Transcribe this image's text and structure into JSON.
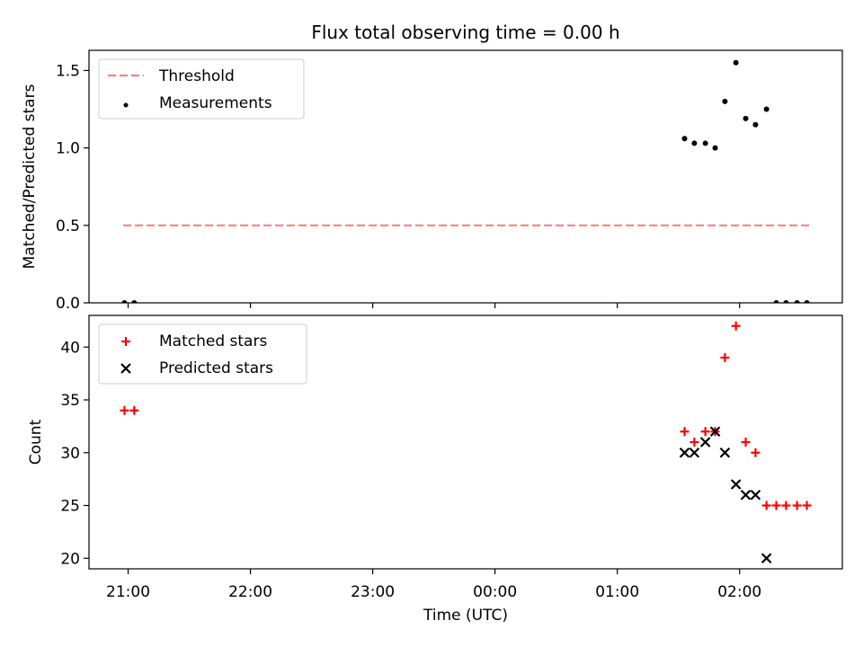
{
  "chart_data": {
    "title": "Flux total observing time = 0.00 h",
    "xlabel": "Time (UTC)",
    "x_tick_labels": [
      "21:00",
      "22:00",
      "23:00",
      "00:00",
      "01:00",
      "02:00"
    ],
    "x_unit": "hours relative to 00:00 UTC",
    "xlim": [
      -3.32,
      2.84
    ],
    "x_ticks": [
      -3,
      -2,
      -1,
      0,
      1,
      2
    ],
    "panels": [
      {
        "type": "scatter",
        "ylabel": "Matched/Predicted stars",
        "ylim": [
          0,
          1.63
        ],
        "y_ticks": [
          0.0,
          0.5,
          1.0,
          1.5
        ],
        "y_tick_labels": [
          "0.0",
          "0.5",
          "1.0",
          "1.5"
        ],
        "legend_position": "top-left",
        "series": [
          {
            "name": "Threshold",
            "kind": "line",
            "style": "dashed",
            "color": "#ff7f7f",
            "points": [
              [
                -3.04,
                0.5
              ],
              [
                2.57,
                0.5
              ]
            ]
          },
          {
            "name": "Measurements",
            "kind": "points",
            "color": "#000000",
            "points": [
              [
                -3.03,
                0.0
              ],
              [
                -2.95,
                0.0
              ],
              [
                1.55,
                1.06
              ],
              [
                1.63,
                1.03
              ],
              [
                1.72,
                1.03
              ],
              [
                1.8,
                1.0
              ],
              [
                1.88,
                1.3
              ],
              [
                1.97,
                1.55
              ],
              [
                2.05,
                1.19
              ],
              [
                2.13,
                1.15
              ],
              [
                2.22,
                1.25
              ],
              [
                2.3,
                0.0
              ],
              [
                2.38,
                0.0
              ],
              [
                2.47,
                0.0
              ],
              [
                2.55,
                0.0
              ]
            ]
          }
        ]
      },
      {
        "type": "scatter",
        "ylabel": "Count",
        "ylim": [
          19,
          43
        ],
        "y_ticks": [
          20,
          25,
          30,
          35,
          40
        ],
        "y_tick_labels": [
          "20",
          "25",
          "30",
          "35",
          "40"
        ],
        "legend_position": "top-left",
        "series": [
          {
            "name": "Matched stars",
            "kind": "plus",
            "color": "#ff0000",
            "points": [
              [
                -3.03,
                34
              ],
              [
                -2.95,
                34
              ],
              [
                1.55,
                32
              ],
              [
                1.63,
                31
              ],
              [
                1.72,
                32
              ],
              [
                1.8,
                32
              ],
              [
                1.88,
                39
              ],
              [
                1.97,
                42
              ],
              [
                2.05,
                31
              ],
              [
                2.13,
                30
              ],
              [
                2.22,
                25
              ],
              [
                2.3,
                25
              ],
              [
                2.38,
                25
              ],
              [
                2.47,
                25
              ],
              [
                2.55,
                25
              ]
            ]
          },
          {
            "name": "Predicted stars",
            "kind": "cross",
            "color": "#000000",
            "points": [
              [
                1.55,
                30
              ],
              [
                1.63,
                30
              ],
              [
                1.72,
                31
              ],
              [
                1.8,
                32
              ],
              [
                1.88,
                30
              ],
              [
                1.97,
                27
              ],
              [
                2.05,
                26
              ],
              [
                2.13,
                26
              ],
              [
                2.22,
                20
              ]
            ]
          }
        ]
      }
    ]
  }
}
